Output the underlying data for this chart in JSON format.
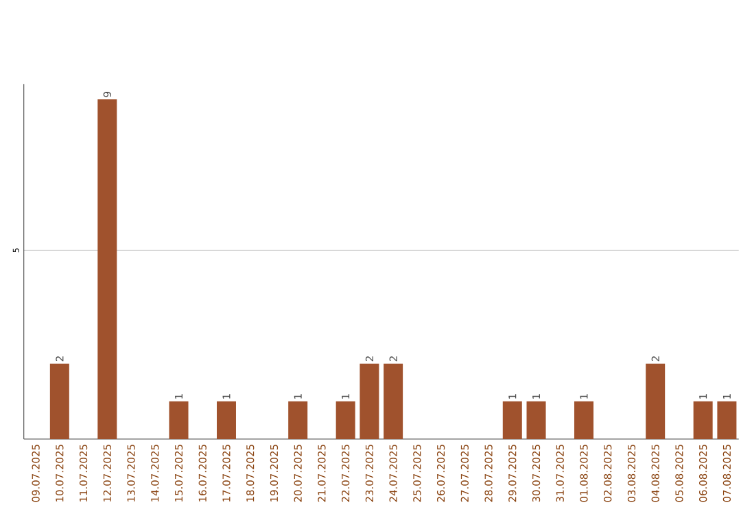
{
  "chart_data": {
    "type": "bar",
    "categories": [
      "09.07.2025",
      "10.07.2025",
      "11.07.2025",
      "12.07.2025",
      "13.07.2025",
      "14.07.2025",
      "15.07.2025",
      "16.07.2025",
      "17.07.2025",
      "18.07.2025",
      "19.07.2025",
      "20.07.2025",
      "21.07.2025",
      "22.07.2025",
      "23.07.2025",
      "24.07.2025",
      "25.07.2025",
      "26.07.2025",
      "27.07.2025",
      "28.07.2025",
      "29.07.2025",
      "30.07.2025",
      "31.07.2025",
      "01.08.2025",
      "02.08.2025",
      "03.08.2025",
      "04.08.2025",
      "05.08.2025",
      "06.08.2025",
      "07.08.2025"
    ],
    "values": [
      0,
      2,
      0,
      9,
      0,
      0,
      1,
      0,
      1,
      0,
      0,
      1,
      0,
      1,
      2,
      2,
      0,
      0,
      0,
      0,
      1,
      1,
      0,
      1,
      0,
      0,
      2,
      0,
      1,
      1
    ],
    "value_labels": [
      null,
      "2",
      null,
      "9",
      null,
      null,
      "1",
      null,
      "1",
      null,
      null,
      "1",
      null,
      "1",
      "2",
      "2",
      null,
      null,
      null,
      null,
      "1",
      "1",
      null,
      "1",
      null,
      null,
      "2",
      null,
      "1",
      "1"
    ],
    "color": "#a0522d",
    "ylim": [
      0,
      9.4
    ],
    "yticks": [
      5
    ],
    "grid": "y"
  }
}
